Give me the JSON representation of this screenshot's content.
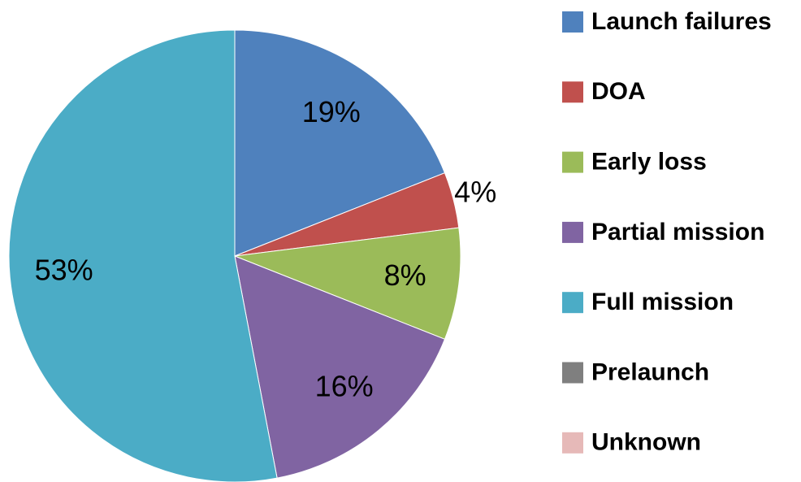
{
  "chart_data": {
    "type": "pie",
    "categories": [
      "Launch failures",
      "DOA",
      "Early loss",
      "Partial mission",
      "Full mission",
      "Prelaunch",
      "Unknown"
    ],
    "values": [
      19,
      4,
      8,
      16,
      53,
      0,
      0
    ],
    "value_labels": [
      "19%",
      "4%",
      "8%",
      "16%",
      "53%",
      null,
      null
    ],
    "colors": [
      "#4f81bd",
      "#c0504d",
      "#9bbb59",
      "#8064a2",
      "#4bacc6",
      "#7f7f7f",
      "#e6b9b8"
    ],
    "legend": "right"
  }
}
